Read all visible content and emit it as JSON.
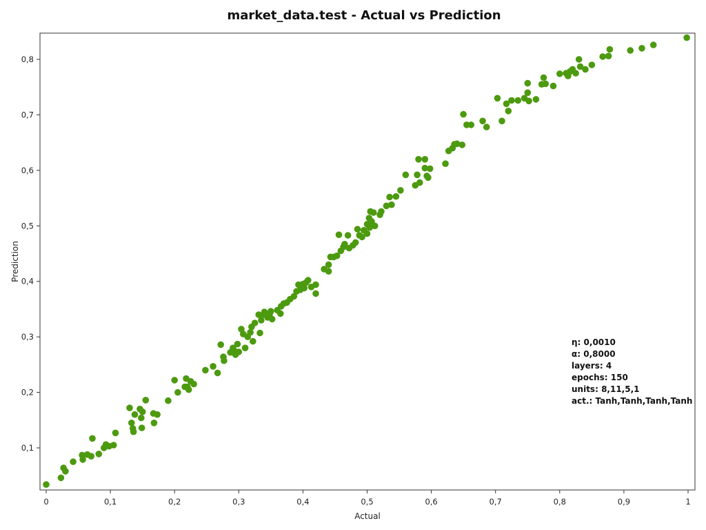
{
  "chart_data": {
    "type": "scatter",
    "title": "market_data.test - Actual vs Prediction",
    "xlabel": "Actual",
    "ylabel": "Prediction",
    "xlim": [
      0,
      1
    ],
    "ylim": [
      0.03,
      0.85
    ],
    "x_ticks": [
      0,
      0.1,
      0.2,
      0.3,
      0.4,
      0.5,
      0.6,
      0.7,
      0.8,
      0.9,
      1
    ],
    "x_tick_labels": [
      "0",
      "0,1",
      "0,2",
      "0,3",
      "0,4",
      "0,5",
      "0,6",
      "0,7",
      "0,8",
      "0,9",
      "1"
    ],
    "y_ticks": [
      0.1,
      0.2,
      0.3,
      0.4,
      0.5,
      0.6,
      0.7,
      0.8
    ],
    "y_tick_labels": [
      "0,1",
      "0,2",
      "0,3",
      "0,4",
      "0,5",
      "0,6",
      "0,7",
      "0,8"
    ],
    "grid": false,
    "marker_color": "#4c9a0f",
    "points": [
      [
        0.0,
        0.034
      ],
      [
        0.023,
        0.046
      ],
      [
        0.027,
        0.064
      ],
      [
        0.03,
        0.058
      ],
      [
        0.042,
        0.075
      ],
      [
        0.056,
        0.087
      ],
      [
        0.057,
        0.079
      ],
      [
        0.064,
        0.088
      ],
      [
        0.07,
        0.085
      ],
      [
        0.072,
        0.117
      ],
      [
        0.082,
        0.089
      ],
      [
        0.09,
        0.1
      ],
      [
        0.093,
        0.106
      ],
      [
        0.098,
        0.103
      ],
      [
        0.105,
        0.105
      ],
      [
        0.108,
        0.127
      ],
      [
        0.13,
        0.172
      ],
      [
        0.133,
        0.145
      ],
      [
        0.135,
        0.135
      ],
      [
        0.136,
        0.129
      ],
      [
        0.138,
        0.16
      ],
      [
        0.146,
        0.17
      ],
      [
        0.148,
        0.154
      ],
      [
        0.149,
        0.136
      ],
      [
        0.15,
        0.165
      ],
      [
        0.155,
        0.186
      ],
      [
        0.167,
        0.162
      ],
      [
        0.168,
        0.145
      ],
      [
        0.173,
        0.16
      ],
      [
        0.19,
        0.185
      ],
      [
        0.2,
        0.222
      ],
      [
        0.205,
        0.2
      ],
      [
        0.216,
        0.21
      ],
      [
        0.218,
        0.225
      ],
      [
        0.22,
        0.21
      ],
      [
        0.222,
        0.205
      ],
      [
        0.225,
        0.22
      ],
      [
        0.23,
        0.215
      ],
      [
        0.248,
        0.24
      ],
      [
        0.26,
        0.247
      ],
      [
        0.267,
        0.235
      ],
      [
        0.272,
        0.286
      ],
      [
        0.276,
        0.264
      ],
      [
        0.277,
        0.257
      ],
      [
        0.287,
        0.272
      ],
      [
        0.291,
        0.28
      ],
      [
        0.293,
        0.275
      ],
      [
        0.295,
        0.268
      ],
      [
        0.298,
        0.287
      ],
      [
        0.3,
        0.273
      ],
      [
        0.304,
        0.314
      ],
      [
        0.307,
        0.305
      ],
      [
        0.31,
        0.28
      ],
      [
        0.314,
        0.3
      ],
      [
        0.318,
        0.308
      ],
      [
        0.32,
        0.318
      ],
      [
        0.322,
        0.292
      ],
      [
        0.325,
        0.325
      ],
      [
        0.331,
        0.34
      ],
      [
        0.333,
        0.307
      ],
      [
        0.335,
        0.33
      ],
      [
        0.338,
        0.34
      ],
      [
        0.34,
        0.345
      ],
      [
        0.345,
        0.335
      ],
      [
        0.348,
        0.34
      ],
      [
        0.35,
        0.346
      ],
      [
        0.352,
        0.332
      ],
      [
        0.36,
        0.348
      ],
      [
        0.365,
        0.342
      ],
      [
        0.366,
        0.355
      ],
      [
        0.37,
        0.36
      ],
      [
        0.375,
        0.362
      ],
      [
        0.38,
        0.368
      ],
      [
        0.386,
        0.373
      ],
      [
        0.39,
        0.382
      ],
      [
        0.393,
        0.394
      ],
      [
        0.396,
        0.385
      ],
      [
        0.4,
        0.395
      ],
      [
        0.402,
        0.388
      ],
      [
        0.405,
        0.398
      ],
      [
        0.408,
        0.402
      ],
      [
        0.413,
        0.39
      ],
      [
        0.42,
        0.394
      ],
      [
        0.42,
        0.378
      ],
      [
        0.433,
        0.422
      ],
      [
        0.44,
        0.43
      ],
      [
        0.44,
        0.418
      ],
      [
        0.443,
        0.444
      ],
      [
        0.448,
        0.444
      ],
      [
        0.453,
        0.446
      ],
      [
        0.456,
        0.484
      ],
      [
        0.459,
        0.455
      ],
      [
        0.463,
        0.462
      ],
      [
        0.465,
        0.467
      ],
      [
        0.47,
        0.483
      ],
      [
        0.472,
        0.46
      ],
      [
        0.478,
        0.465
      ],
      [
        0.482,
        0.47
      ],
      [
        0.485,
        0.494
      ],
      [
        0.488,
        0.483
      ],
      [
        0.492,
        0.48
      ],
      [
        0.495,
        0.492
      ],
      [
        0.5,
        0.503
      ],
      [
        0.5,
        0.486
      ],
      [
        0.503,
        0.514
      ],
      [
        0.504,
        0.497
      ],
      [
        0.505,
        0.526
      ],
      [
        0.507,
        0.508
      ],
      [
        0.51,
        0.524
      ],
      [
        0.512,
        0.5
      ],
      [
        0.52,
        0.52
      ],
      [
        0.522,
        0.526
      ],
      [
        0.53,
        0.536
      ],
      [
        0.535,
        0.552
      ],
      [
        0.538,
        0.538
      ],
      [
        0.545,
        0.553
      ],
      [
        0.552,
        0.564
      ],
      [
        0.56,
        0.592
      ],
      [
        0.575,
        0.573
      ],
      [
        0.578,
        0.592
      ],
      [
        0.58,
        0.62
      ],
      [
        0.582,
        0.578
      ],
      [
        0.59,
        0.604
      ],
      [
        0.59,
        0.62
      ],
      [
        0.593,
        0.59
      ],
      [
        0.595,
        0.587
      ],
      [
        0.598,
        0.603
      ],
      [
        0.622,
        0.612
      ],
      [
        0.627,
        0.635
      ],
      [
        0.633,
        0.64
      ],
      [
        0.636,
        0.647
      ],
      [
        0.64,
        0.648
      ],
      [
        0.648,
        0.646
      ],
      [
        0.65,
        0.701
      ],
      [
        0.655,
        0.682
      ],
      [
        0.662,
        0.682
      ],
      [
        0.68,
        0.689
      ],
      [
        0.686,
        0.678
      ],
      [
        0.703,
        0.73
      ],
      [
        0.71,
        0.689
      ],
      [
        0.717,
        0.72
      ],
      [
        0.72,
        0.707
      ],
      [
        0.725,
        0.726
      ],
      [
        0.735,
        0.726
      ],
      [
        0.745,
        0.73
      ],
      [
        0.75,
        0.757
      ],
      [
        0.75,
        0.74
      ],
      [
        0.752,
        0.725
      ],
      [
        0.763,
        0.728
      ],
      [
        0.772,
        0.755
      ],
      [
        0.775,
        0.767
      ],
      [
        0.778,
        0.756
      ],
      [
        0.79,
        0.752
      ],
      [
        0.8,
        0.774
      ],
      [
        0.81,
        0.775
      ],
      [
        0.813,
        0.77
      ],
      [
        0.816,
        0.778
      ],
      [
        0.82,
        0.782
      ],
      [
        0.825,
        0.775
      ],
      [
        0.83,
        0.8
      ],
      [
        0.832,
        0.787
      ],
      [
        0.84,
        0.782
      ],
      [
        0.85,
        0.79
      ],
      [
        0.867,
        0.805
      ],
      [
        0.876,
        0.806
      ],
      [
        0.878,
        0.818
      ],
      [
        0.91,
        0.816
      ],
      [
        0.928,
        0.82
      ],
      [
        0.946,
        0.826
      ],
      [
        0.998,
        0.839
      ]
    ],
    "annotations": [
      {
        "label": "η:",
        "value": "0,0010"
      },
      {
        "label": "α:",
        "value": "0,8000"
      },
      {
        "label": "layers:",
        "value": "4"
      },
      {
        "label": "epochs:",
        "value": "150"
      },
      {
        "label": "units:",
        "value": "8,11,5,1"
      },
      {
        "label": "act.:",
        "value": "Tanh,Tanh,Tanh,Tanh"
      }
    ]
  }
}
